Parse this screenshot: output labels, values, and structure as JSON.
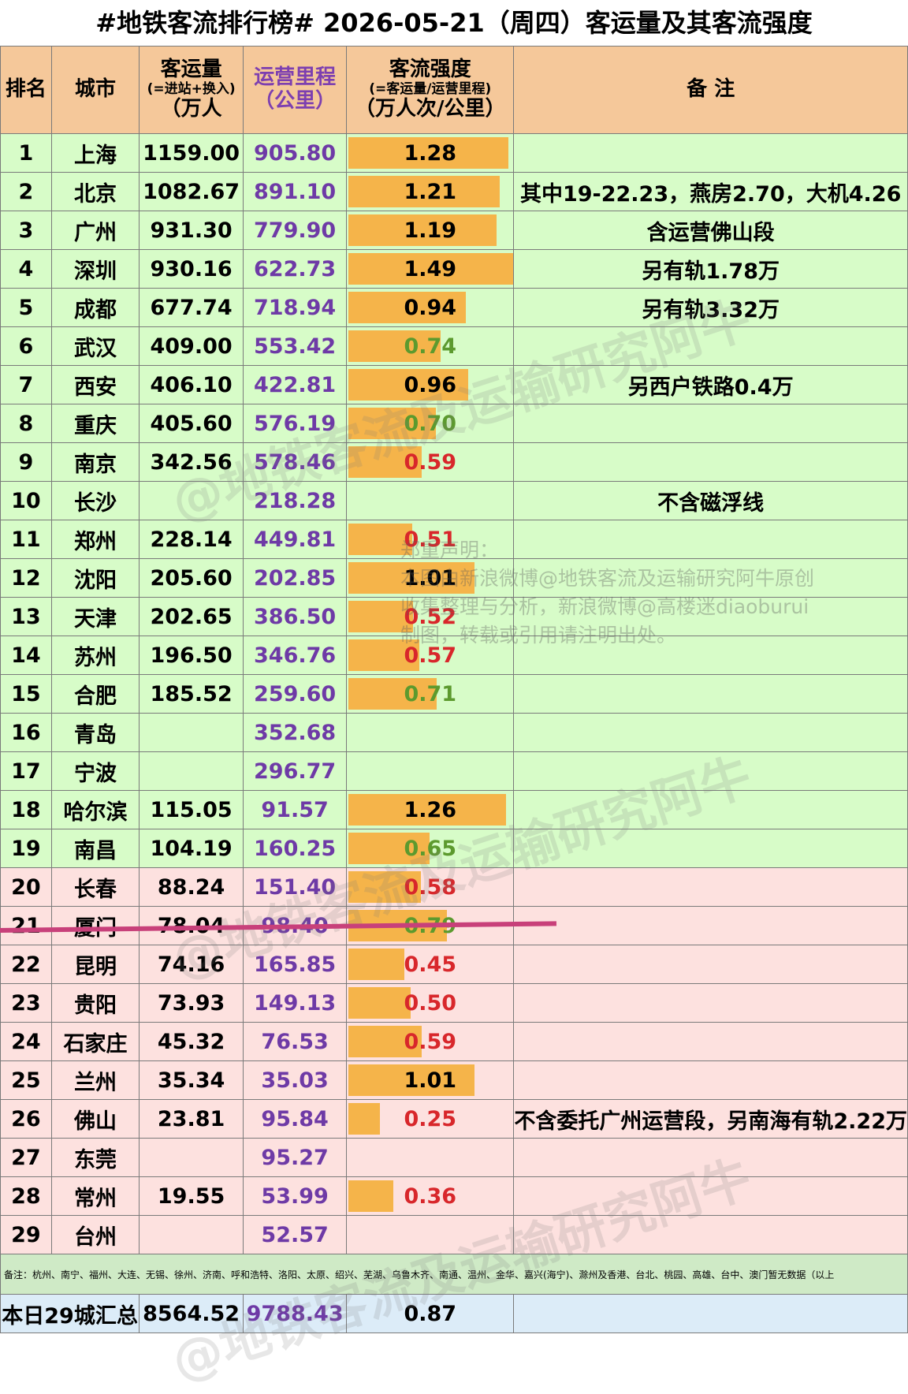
{
  "title": "#地铁客流排行榜# 2026-05-21（周四）客运量及其客流强度",
  "headers": {
    "rank": "排名",
    "city": "城市",
    "ridership_main": "客运量",
    "ridership_sub": "(=进站+换入)",
    "ridership_unit": "（万人",
    "mileage_main": "运营里程",
    "mileage_unit": "（公里）",
    "intensity_main": "客流强度",
    "intensity_sub": "(=客运量/运营里程)",
    "intensity_unit": "（万人次/公里）",
    "remark": "备 注"
  },
  "rows": [
    {
      "rank": "1",
      "city": "上海",
      "ridership": "1159.00",
      "mileage": "905.80",
      "intensity": "1.28",
      "intensity_value": 1.28,
      "remark": ""
    },
    {
      "rank": "2",
      "city": "北京",
      "ridership": "1082.67",
      "mileage": "891.10",
      "intensity": "1.21",
      "intensity_value": 1.21,
      "remark": "其中19-22.23，燕房2.70，大机4.26"
    },
    {
      "rank": "3",
      "city": "广州",
      "ridership": "931.30",
      "mileage": "779.90",
      "intensity": "1.19",
      "intensity_value": 1.19,
      "remark": "含运营佛山段"
    },
    {
      "rank": "4",
      "city": "深圳",
      "ridership": "930.16",
      "mileage": "622.73",
      "intensity": "1.49",
      "intensity_value": 1.49,
      "remark": "另有轨1.78万"
    },
    {
      "rank": "5",
      "city": "成都",
      "ridership": "677.74",
      "mileage": "718.94",
      "intensity": "0.94",
      "intensity_value": 0.94,
      "remark": "另有轨3.32万"
    },
    {
      "rank": "6",
      "city": "武汉",
      "ridership": "409.00",
      "mileage": "553.42",
      "intensity": "0.74",
      "intensity_value": 0.74,
      "remark": ""
    },
    {
      "rank": "7",
      "city": "西安",
      "ridership": "406.10",
      "mileage": "422.81",
      "intensity": "0.96",
      "intensity_value": 0.96,
      "remark": "另西户铁路0.4万"
    },
    {
      "rank": "8",
      "city": "重庆",
      "ridership": "405.60",
      "mileage": "576.19",
      "intensity": "0.70",
      "intensity_value": 0.7,
      "remark": ""
    },
    {
      "rank": "9",
      "city": "南京",
      "ridership": "342.56",
      "mileage": "578.46",
      "intensity": "0.59",
      "intensity_value": 0.59,
      "remark": ""
    },
    {
      "rank": "10",
      "city": "长沙",
      "ridership": "",
      "mileage": "218.28",
      "intensity": "",
      "intensity_value": 0,
      "remark": "不含磁浮线"
    },
    {
      "rank": "11",
      "city": "郑州",
      "ridership": "228.14",
      "mileage": "449.81",
      "intensity": "0.51",
      "intensity_value": 0.51,
      "remark": ""
    },
    {
      "rank": "12",
      "city": "沈阳",
      "ridership": "205.60",
      "mileage": "202.85",
      "intensity": "1.01",
      "intensity_value": 1.01,
      "remark": ""
    },
    {
      "rank": "13",
      "city": "天津",
      "ridership": "202.65",
      "mileage": "386.50",
      "intensity": "0.52",
      "intensity_value": 0.52,
      "remark": ""
    },
    {
      "rank": "14",
      "city": "苏州",
      "ridership": "196.50",
      "mileage": "346.76",
      "intensity": "0.57",
      "intensity_value": 0.57,
      "remark": ""
    },
    {
      "rank": "15",
      "city": "合肥",
      "ridership": "185.52",
      "mileage": "259.60",
      "intensity": "0.71",
      "intensity_value": 0.71,
      "remark": ""
    },
    {
      "rank": "16",
      "city": "青岛",
      "ridership": "",
      "mileage": "352.68",
      "intensity": "",
      "intensity_value": 0,
      "remark": ""
    },
    {
      "rank": "17",
      "city": "宁波",
      "ridership": "",
      "mileage": "296.77",
      "intensity": "",
      "intensity_value": 0,
      "remark": ""
    },
    {
      "rank": "18",
      "city": "哈尔滨",
      "ridership": "115.05",
      "mileage": "91.57",
      "intensity": "1.26",
      "intensity_value": 1.26,
      "remark": ""
    },
    {
      "rank": "19",
      "city": "南昌",
      "ridership": "104.19",
      "mileage": "160.25",
      "intensity": "0.65",
      "intensity_value": 0.65,
      "remark": ""
    },
    {
      "rank": "20",
      "city": "长春",
      "ridership": "88.24",
      "mileage": "151.40",
      "intensity": "0.58",
      "intensity_value": 0.58,
      "remark": ""
    },
    {
      "rank": "21",
      "city": "厦门",
      "ridership": "78.04",
      "mileage": "98.40",
      "intensity": "0.79",
      "intensity_value": 0.79,
      "remark": ""
    },
    {
      "rank": "22",
      "city": "昆明",
      "ridership": "74.16",
      "mileage": "165.85",
      "intensity": "0.45",
      "intensity_value": 0.45,
      "remark": ""
    },
    {
      "rank": "23",
      "city": "贵阳",
      "ridership": "73.93",
      "mileage": "149.13",
      "intensity": "0.50",
      "intensity_value": 0.5,
      "remark": ""
    },
    {
      "rank": "24",
      "city": "石家庄",
      "ridership": "45.32",
      "mileage": "76.53",
      "intensity": "0.59",
      "intensity_value": 0.59,
      "remark": ""
    },
    {
      "rank": "25",
      "city": "兰州",
      "ridership": "35.34",
      "mileage": "35.03",
      "intensity": "1.01",
      "intensity_value": 1.01,
      "remark": ""
    },
    {
      "rank": "26",
      "city": "佛山",
      "ridership": "23.81",
      "mileage": "95.84",
      "intensity": "0.25",
      "intensity_value": 0.25,
      "remark": "不含委托广州运营段，另南海有轨2.22万"
    },
    {
      "rank": "27",
      "city": "东莞",
      "ridership": "",
      "mileage": "95.27",
      "intensity": "",
      "intensity_value": 0,
      "remark": ""
    },
    {
      "rank": "28",
      "city": "常州",
      "ridership": "19.55",
      "mileage": "53.99",
      "intensity": "0.36",
      "intensity_value": 0.36,
      "remark": ""
    },
    {
      "rank": "29",
      "city": "台州",
      "ridership": "",
      "mileage": "52.57",
      "intensity": "",
      "intensity_value": 0,
      "remark": ""
    }
  ],
  "note": "备注：杭州、南宁、福州、大连、无锡、徐州、济南、呼和浩特、洛阳、太原、绍兴、芜湖、乌鲁木齐、南通、温州、金华、嘉兴(海宁)、滁州及香港、台北、桃园、高雄、台中、澳门暂无数据（以上",
  "total": {
    "label": "本日29城汇总",
    "ridership": "8564.52",
    "mileage": "9788.43",
    "intensity": "0.87"
  },
  "disclaimer": [
    "郑重声明：",
    "本图由新浪微博@地铁客流及运输研究阿牛原创",
    "收集整理与分析，新浪微博@高楼迷diaoburui",
    "制图，转载或引用请注明出处。"
  ],
  "watermark": "@地铁客流及运输研究阿牛",
  "colors": {
    "green_row": "#d7fcc8",
    "pink_row": "#fde1df",
    "bar": "#f5b44a",
    "header": "#f5c89a",
    "cutline": "#c8407a",
    "high": "#000000",
    "mid": "#5c9a2e",
    "low": "#d8272b"
  }
}
